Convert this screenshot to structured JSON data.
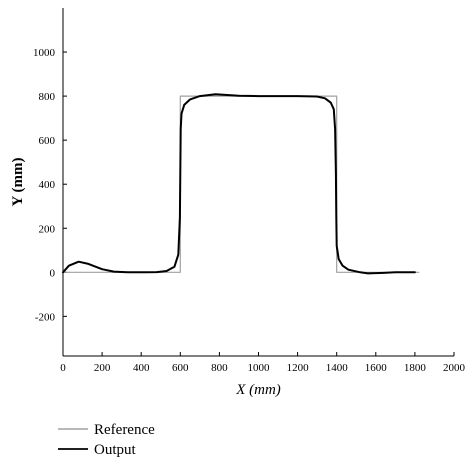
{
  "chart_data": {
    "type": "line",
    "xlabel": "X (mm)",
    "ylabel": "Y (mm)",
    "xlim": [
      0,
      2000
    ],
    "ylim": [
      -380,
      1200
    ],
    "x_ticks": [
      0,
      200,
      400,
      600,
      800,
      1000,
      1200,
      1400,
      1600,
      1800,
      2000
    ],
    "y_ticks": [
      -200,
      0,
      200,
      400,
      600,
      800,
      1000
    ],
    "grid": false,
    "legend_position": "bottom-left",
    "series": [
      {
        "name": "Reference",
        "color": "#a0a0a0",
        "points": [
          [
            0,
            0
          ],
          [
            600,
            0
          ],
          [
            600,
            800
          ],
          [
            1400,
            800
          ],
          [
            1400,
            0
          ],
          [
            1820,
            0
          ]
        ]
      },
      {
        "name": "Output",
        "color": "#000000",
        "points": [
          [
            0,
            0
          ],
          [
            30,
            30
          ],
          [
            80,
            48
          ],
          [
            130,
            38
          ],
          [
            200,
            14
          ],
          [
            260,
            3
          ],
          [
            330,
            0
          ],
          [
            420,
            0
          ],
          [
            480,
            1
          ],
          [
            530,
            6
          ],
          [
            570,
            25
          ],
          [
            590,
            80
          ],
          [
            598,
            250
          ],
          [
            600,
            450
          ],
          [
            602,
            650
          ],
          [
            606,
            720
          ],
          [
            620,
            760
          ],
          [
            650,
            785
          ],
          [
            700,
            800
          ],
          [
            780,
            808
          ],
          [
            900,
            802
          ],
          [
            1000,
            800
          ],
          [
            1100,
            800
          ],
          [
            1200,
            800
          ],
          [
            1300,
            798
          ],
          [
            1340,
            790
          ],
          [
            1370,
            770
          ],
          [
            1385,
            740
          ],
          [
            1392,
            650
          ],
          [
            1396,
            450
          ],
          [
            1398,
            250
          ],
          [
            1400,
            120
          ],
          [
            1410,
            60
          ],
          [
            1430,
            30
          ],
          [
            1460,
            12
          ],
          [
            1520,
            0
          ],
          [
            1560,
            -5
          ],
          [
            1620,
            -3
          ],
          [
            1700,
            0
          ],
          [
            1800,
            0
          ]
        ]
      }
    ]
  }
}
